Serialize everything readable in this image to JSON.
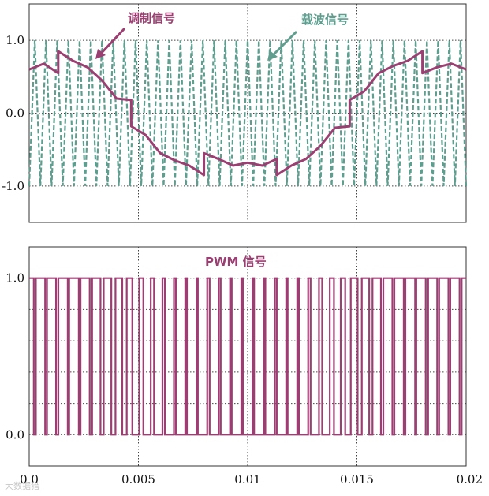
{
  "chart_data": [
    {
      "type": "line",
      "panel": "top",
      "title": "",
      "xlabel": "",
      "ylabel": "",
      "xlim": [
        0,
        0.02
      ],
      "ylim": [
        -1.5,
        1.5
      ],
      "yticks": [
        -1.0,
        0.0,
        1.0
      ],
      "ytick_labels": [
        "-1.0",
        "0.0",
        "1.0"
      ],
      "grid": true,
      "carrier_frequency_hz": 1950,
      "annotations": [
        {
          "text": "调制信号",
          "color": "#9B3F72",
          "points_to": "modulating-signal"
        },
        {
          "text": "载波信号",
          "color": "#5F9E8F",
          "points_to": "carrier-signal"
        }
      ],
      "series": [
        {
          "id": "carrier",
          "style": "dashed",
          "color": "#5F9E8F",
          "description_waveform": "triangle",
          "amplitude": 1.0,
          "x": [
            0,
            0.000256,
            0.000513,
            0.000769,
            0.001026,
            0.001282,
            0.001538,
            0.001795,
            0.002051,
            0.002308,
            0.002564,
            0.002821,
            0.003077,
            0.003333,
            0.00359,
            0.003846,
            0.004103,
            0.004359,
            0.004615,
            0.004872,
            0.005128,
            0.005385,
            0.005641,
            0.005897,
            0.006154,
            0.00641,
            0.006667,
            0.006923,
            0.007179,
            0.007436,
            0.007692,
            0.007949,
            0.008205,
            0.008462,
            0.008718,
            0.008974,
            0.009231,
            0.009487,
            0.009744,
            0.01,
            0.010256,
            0.010513,
            0.010769,
            0.011026,
            0.011282,
            0.011538,
            0.011795,
            0.012051,
            0.012308,
            0.012564,
            0.012821,
            0.013077,
            0.013333,
            0.01359,
            0.013846,
            0.014103,
            0.014359,
            0.014615,
            0.014872,
            0.015128,
            0.015385,
            0.015641,
            0.015897,
            0.016154,
            0.01641,
            0.016667,
            0.016923,
            0.017179,
            0.017436,
            0.017692,
            0.017949,
            0.018205,
            0.018462,
            0.018718,
            0.018974,
            0.019231,
            0.019487,
            0.019744,
            0.02
          ],
          "y": [
            -1,
            1,
            -1,
            1,
            -1,
            1,
            -1,
            1,
            -1,
            1,
            -1,
            1,
            -1,
            1,
            -1,
            1,
            -1,
            1,
            -1,
            1,
            -1,
            1,
            -1,
            1,
            -1,
            1,
            -1,
            1,
            -1,
            1,
            -1,
            1,
            -1,
            1,
            -1,
            1,
            -1,
            1,
            -1,
            1,
            -1,
            1,
            -1,
            1,
            -1,
            1,
            -1,
            1,
            -1,
            1,
            -1,
            1,
            -1,
            1,
            -1,
            1,
            -1,
            1,
            -1,
            1,
            -1,
            1,
            -1,
            1,
            -1,
            1,
            -1,
            1,
            -1,
            1,
            -1,
            1,
            -1,
            1,
            -1,
            1,
            -1,
            1,
            -1
          ]
        },
        {
          "id": "modulating",
          "style": "solid",
          "color": "#9B3F72",
          "x": [
            0,
            0.00067,
            0.00133,
            0.00133,
            0.002,
            0.00267,
            0.00333,
            0.004,
            0.00467,
            0.00467,
            0.00533,
            0.006,
            0.00667,
            0.00733,
            0.008,
            0.008,
            0.00867,
            0.00933,
            0.01,
            0.01067,
            0.01133,
            0.01133,
            0.012,
            0.01267,
            0.01333,
            0.014,
            0.01467,
            0.01467,
            0.01533,
            0.016,
            0.01667,
            0.01733,
            0.018,
            0.018,
            0.01867,
            0.01933,
            0.02
          ],
          "y": [
            0.6,
            0.68,
            0.55,
            0.85,
            0.72,
            0.63,
            0.45,
            0.2,
            0.18,
            -0.18,
            -0.3,
            -0.55,
            -0.65,
            -0.72,
            -0.85,
            -0.55,
            -0.63,
            -0.72,
            -0.68,
            -0.72,
            -0.63,
            -0.85,
            -0.72,
            -0.63,
            -0.45,
            -0.2,
            -0.18,
            0.18,
            0.3,
            0.55,
            0.65,
            0.72,
            0.85,
            0.55,
            0.63,
            0.68,
            0.6
          ]
        }
      ]
    },
    {
      "type": "line",
      "panel": "bottom",
      "title": "",
      "xlabel": "",
      "ylabel": "",
      "xlim": [
        0,
        0.02
      ],
      "ylim": [
        -0.2,
        1.2
      ],
      "xticks": [
        0.0,
        0.005,
        0.01,
        0.015,
        0.02
      ],
      "xtick_labels": [
        "0.0",
        "0.005",
        "0.01",
        "0.015",
        "0.02"
      ],
      "yticks": [
        0.0,
        1.0
      ],
      "ytick_labels": [
        "0.0",
        "1.0"
      ],
      "grid": true,
      "annotations": [
        {
          "text": "PWM 信号",
          "color": "#9B3F72"
        }
      ],
      "series": [
        {
          "id": "pwm",
          "style": "step",
          "color": "#9B3F72",
          "description_waveform": "comparison of modulating signal vs carrier (1 when modulating > carrier)",
          "x": [],
          "y": []
        }
      ]
    }
  ],
  "watermark": "大数据猎"
}
